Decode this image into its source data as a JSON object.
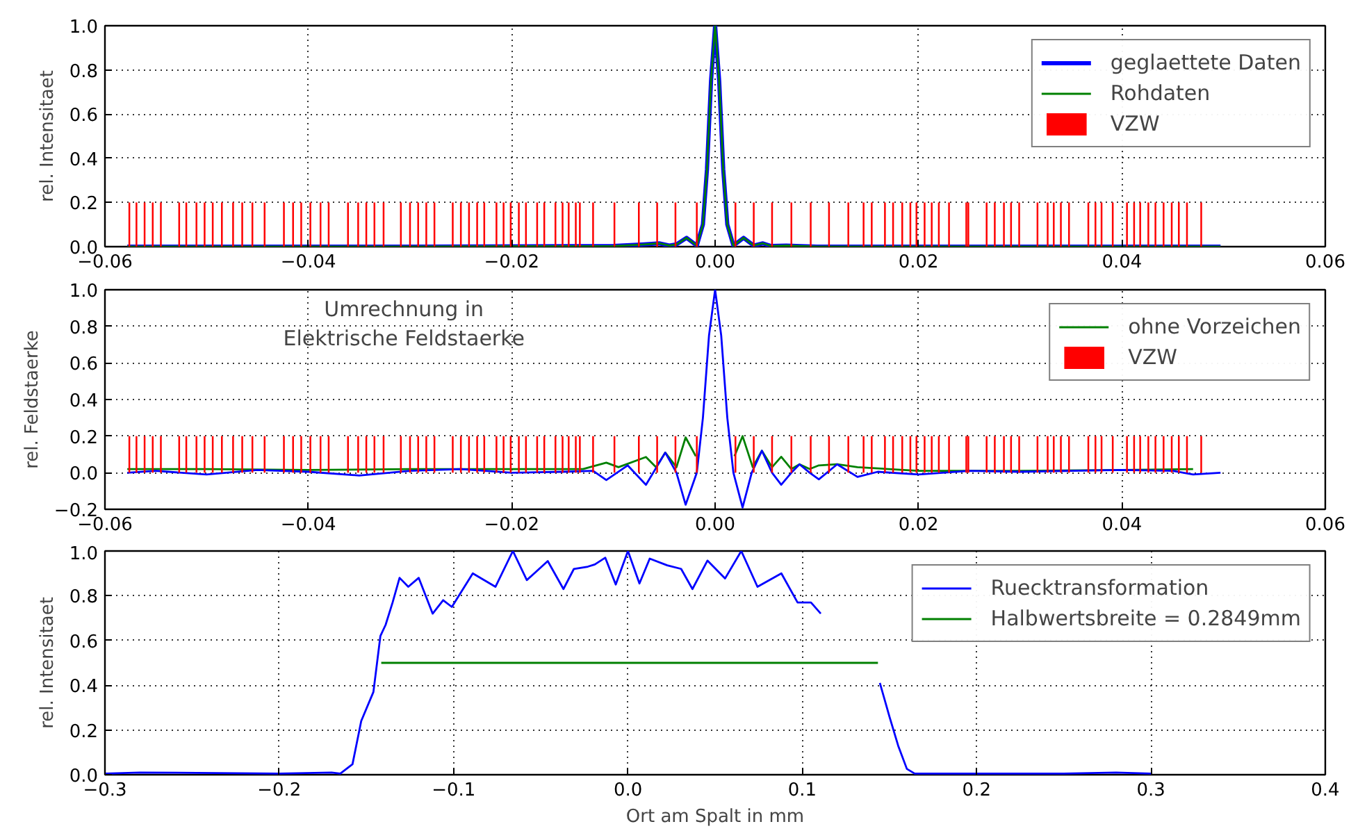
{
  "chart_data": [
    {
      "type": "line",
      "ylabel": "rel. Intensitaet",
      "xlim": [
        -0.06,
        0.06
      ],
      "ylim": [
        0,
        1.0
      ],
      "xticks": [
        {
          "value": -0.06,
          "label": "−0.06"
        },
        {
          "value": -0.04,
          "label": "−0.04"
        },
        {
          "value": -0.02,
          "label": "−0.02"
        },
        {
          "value": 0,
          "label": "0.00"
        },
        {
          "value": 0.02,
          "label": "0.02"
        },
        {
          "value": 0.04,
          "label": "0.04"
        },
        {
          "value": 0.06,
          "label": "0.06"
        }
      ],
      "yticks": [
        {
          "value": 0,
          "label": "0.0"
        },
        {
          "value": 0.2,
          "label": "0.2"
        },
        {
          "value": 0.4,
          "label": "0.4"
        },
        {
          "value": 0.6,
          "label": "0.6"
        },
        {
          "value": 0.8,
          "label": "0.8"
        },
        {
          "value": 1.0,
          "label": "1.0"
        }
      ],
      "grid": true,
      "legend": "top right",
      "series": [
        {
          "name": "geglaettete Daten",
          "color": "#0000ff",
          "x": [
            -0.0578,
            -0.03,
            -0.01,
            -0.007,
            -0.0055,
            -0.0045,
            -0.0038,
            -0.0028,
            -0.0018,
            -0.0012,
            -0.0008,
            -0.0004,
            0,
            0.0004,
            0.0008,
            0.0012,
            0.0018,
            0.0028,
            0.0038,
            0.0047,
            0.0055,
            0.007,
            0.01,
            0.03,
            0.0497
          ],
          "values": [
            0,
            0,
            0.003,
            0.01,
            0.015,
            0.005,
            0.01,
            0.04,
            0.005,
            0.1,
            0.35,
            0.75,
            1.0,
            0.75,
            0.35,
            0.1,
            0.005,
            0.04,
            0.005,
            0.015,
            0.003,
            0.005,
            0,
            0,
            0
          ]
        },
        {
          "name": "Rohdaten",
          "color": "#008000",
          "x": [
            -0.0578,
            -0.03,
            -0.01,
            -0.007,
            -0.0055,
            -0.0045,
            -0.0038,
            -0.0028,
            -0.0018,
            -0.0012,
            -0.0008,
            -0.0004,
            0,
            0.0004,
            0.0008,
            0.0012,
            0.0018,
            0.0028,
            0.0038,
            0.0047,
            0.0055,
            0.007,
            0.01,
            0.03,
            0.0497
          ],
          "values": [
            0,
            0,
            0.003,
            0.01,
            0.015,
            0.005,
            0.01,
            0.04,
            0.005,
            0.1,
            0.35,
            0.75,
            1.0,
            0.75,
            0.35,
            0.1,
            0.005,
            0.04,
            0.005,
            0.015,
            0.003,
            0.005,
            0,
            0,
            0
          ]
        },
        {
          "name": "VZW",
          "type": "bar",
          "color": "#ff0000",
          "x": [
            -0.0576,
            -0.0569,
            -0.0561,
            -0.0553,
            -0.0545,
            -0.0527,
            -0.052,
            -0.051,
            -0.0502,
            -0.0494,
            -0.0485,
            -0.0474,
            -0.0465,
            -0.0455,
            -0.0443,
            -0.0424,
            -0.0415,
            -0.0407,
            -0.0398,
            -0.0388,
            -0.038,
            -0.0361,
            -0.0351,
            -0.0343,
            -0.0335,
            -0.0326,
            -0.0309,
            -0.03,
            -0.0292,
            -0.0284,
            -0.0276,
            -0.0258,
            -0.025,
            -0.0242,
            -0.0234,
            -0.0227,
            -0.0215,
            -0.0208,
            -0.0201,
            -0.0193,
            -0.0186,
            -0.0175,
            -0.0168,
            -0.0157,
            -0.015,
            -0.0144,
            -0.0137,
            -0.0133,
            -0.012,
            -0.0099,
            -0.0075,
            -0.0057,
            -0.0039,
            -0.0018,
            0.002,
            0.0038,
            0.0056,
            0.0075,
            0.0094,
            0.0112,
            0.0131,
            0.0146,
            0.0154,
            0.0167,
            0.0175,
            0.0184,
            0.0192,
            0.0198,
            0.0206,
            0.0213,
            0.022,
            0.023,
            0.0247,
            0.0249,
            0.0267,
            0.0275,
            0.0284,
            0.0291,
            0.0299,
            0.0317,
            0.0327,
            0.0333,
            0.034,
            0.0348,
            0.0367,
            0.0374,
            0.038,
            0.0391,
            0.0405,
            0.0412,
            0.0418,
            0.0426,
            0.0433,
            0.0441,
            0.0449,
            0.0456,
            0.0464,
            0.0478
          ],
          "values": [
            0.2,
            0.2,
            0.2,
            0.2,
            0.2,
            0.2,
            0.2,
            0.2,
            0.2,
            0.2,
            0.2,
            0.2,
            0.2,
            0.2,
            0.2,
            0.2,
            0.2,
            0.2,
            0.2,
            0.2,
            0.2,
            0.2,
            0.2,
            0.2,
            0.2,
            0.2,
            0.2,
            0.2,
            0.2,
            0.2,
            0.2,
            0.2,
            0.2,
            0.2,
            0.2,
            0.2,
            0.2,
            0.2,
            0.2,
            0.2,
            0.2,
            0.2,
            0.2,
            0.2,
            0.2,
            0.2,
            0.2,
            0.2,
            0.2,
            0.2,
            0.2,
            0.2,
            0.2,
            0.2,
            0.2,
            0.2,
            0.2,
            0.2,
            0.2,
            0.2,
            0.2,
            0.2,
            0.2,
            0.2,
            0.2,
            0.2,
            0.2,
            0.2,
            0.2,
            0.2,
            0.2,
            0.2,
            0.2,
            0.2,
            0.2,
            0.2,
            0.2,
            0.2,
            0.2,
            0.2,
            0.2,
            0.2,
            0.2,
            0.2,
            0.2,
            0.2,
            0.2,
            0.2,
            0.2,
            0.2,
            0.2,
            0.2,
            0.2,
            0.2,
            0.2,
            0.2,
            0.2,
            0.2
          ]
        }
      ]
    },
    {
      "type": "line",
      "ylabel": "rel. Feldstaerke",
      "xlim": [
        -0.06,
        0.06
      ],
      "ylim": [
        -0.2,
        1.0
      ],
      "xticks": [
        {
          "value": -0.06,
          "label": "−0.06"
        },
        {
          "value": -0.04,
          "label": "−0.04"
        },
        {
          "value": -0.02,
          "label": "−0.02"
        },
        {
          "value": 0,
          "label": "0.00"
        },
        {
          "value": 0.02,
          "label": "0.02"
        },
        {
          "value": 0.04,
          "label": "0.04"
        },
        {
          "value": 0.06,
          "label": "0.06"
        }
      ],
      "yticks": [
        {
          "value": -0.2,
          "label": "−0.2"
        },
        {
          "value": 0,
          "label": "0.0"
        },
        {
          "value": 0.2,
          "label": "0.2"
        },
        {
          "value": 0.4,
          "label": "0.4"
        },
        {
          "value": 0.6,
          "label": "0.6"
        },
        {
          "value": 0.8,
          "label": "0.8"
        },
        {
          "value": 1.0,
          "label": "1.0"
        }
      ],
      "grid": true,
      "legend": "top right",
      "annotations": [
        "Umrechnung in\nElektrische Feldstaerke"
      ],
      "series": [
        {
          "name": "ohne Vorzeichen",
          "color": "#008000",
          "x": [
            -0.0578,
            -0.05,
            -0.04,
            -0.03,
            -0.02,
            -0.013,
            -0.0107,
            -0.0095,
            -0.0068,
            -0.0058,
            -0.0049,
            -0.0038,
            -0.0029,
            -0.0019,
            -0.0012,
            -0.0006,
            0,
            0.0006,
            0.0012,
            0.0019,
            0.0027,
            0.0037,
            0.0046,
            0.0056,
            0.0065,
            0.0075,
            0.0083,
            0.0093,
            0.0102,
            0.012,
            0.014,
            0.02,
            0.03,
            0.04,
            0.047
          ],
          "values": [
            0.02,
            0.02,
            0.015,
            0.02,
            0.02,
            0.02,
            0.055,
            0.03,
            0.086,
            0.03,
            0.11,
            0.03,
            0.193,
            0.09,
            null,
            null,
            null,
            null,
            null,
            0.09,
            0.2,
            0.03,
            0.12,
            0.03,
            0.087,
            0.02,
            0.046,
            0.02,
            0.04,
            0.046,
            0.03,
            0.01,
            0.01,
            0.015,
            0.02
          ]
        },
        {
          "color": "#0000ff",
          "x": [
            -0.0578,
            -0.055,
            -0.05,
            -0.045,
            -0.04,
            -0.035,
            -0.03,
            -0.025,
            -0.02,
            -0.015,
            -0.012,
            -0.0107,
            -0.0086,
            -0.0068,
            -0.0049,
            -0.0038,
            -0.0029,
            -0.0018,
            -0.0012,
            -0.0006,
            0,
            0.0006,
            0.0012,
            0.0018,
            0.0027,
            0.0036,
            0.0046,
            0.0056,
            0.0065,
            0.0075,
            0.0083,
            0.0093,
            0.0102,
            0.012,
            0.014,
            0.016,
            0.02,
            0.025,
            0.03,
            0.035,
            0.04,
            0.045,
            0.047,
            0.0497
          ],
          "values": [
            0,
            0.01,
            -0.01,
            0.015,
            0.005,
            -0.015,
            0.01,
            0.02,
            0,
            0.005,
            0.01,
            -0.04,
            0.04,
            -0.066,
            0.11,
            0,
            -0.175,
            0,
            0.3,
            0.75,
            1.0,
            0.75,
            0.3,
            0,
            -0.19,
            0,
            0.12,
            0,
            -0.066,
            0,
            0.046,
            0,
            -0.036,
            0.046,
            -0.023,
            0.005,
            -0.01,
            0.01,
            0.005,
            0.01,
            0.015,
            0.01,
            -0.01,
            0
          ]
        },
        {
          "name": "VZW",
          "type": "bar",
          "color": "#ff0000",
          "x": [
            -0.0576,
            -0.0569,
            -0.0561,
            -0.0553,
            -0.0545,
            -0.0527,
            -0.052,
            -0.051,
            -0.0502,
            -0.0494,
            -0.0485,
            -0.0474,
            -0.0465,
            -0.0455,
            -0.0443,
            -0.0424,
            -0.0415,
            -0.0407,
            -0.0398,
            -0.0388,
            -0.038,
            -0.0361,
            -0.0351,
            -0.0343,
            -0.0335,
            -0.0326,
            -0.0309,
            -0.03,
            -0.0292,
            -0.0284,
            -0.0276,
            -0.0258,
            -0.025,
            -0.0242,
            -0.0234,
            -0.0227,
            -0.0215,
            -0.0208,
            -0.0201,
            -0.0193,
            -0.0186,
            -0.0175,
            -0.0168,
            -0.0157,
            -0.015,
            -0.0144,
            -0.0137,
            -0.0133,
            -0.012,
            -0.0099,
            -0.0075,
            -0.0057,
            -0.0039,
            -0.0018,
            0.002,
            0.0038,
            0.0056,
            0.0075,
            0.0094,
            0.0112,
            0.0131,
            0.0146,
            0.0154,
            0.0167,
            0.0175,
            0.0184,
            0.0192,
            0.0198,
            0.0206,
            0.0213,
            0.022,
            0.023,
            0.0247,
            0.0249,
            0.0267,
            0.0275,
            0.0284,
            0.0291,
            0.0299,
            0.0317,
            0.0327,
            0.0333,
            0.034,
            0.0348,
            0.0367,
            0.0374,
            0.038,
            0.0391,
            0.0405,
            0.0412,
            0.0418,
            0.0426,
            0.0433,
            0.0441,
            0.0449,
            0.0456,
            0.0464,
            0.0478
          ],
          "values": [
            0.2,
            0.2,
            0.2,
            0.2,
            0.2,
            0.2,
            0.2,
            0.2,
            0.2,
            0.2,
            0.2,
            0.2,
            0.2,
            0.2,
            0.2,
            0.2,
            0.2,
            0.2,
            0.2,
            0.2,
            0.2,
            0.2,
            0.2,
            0.2,
            0.2,
            0.2,
            0.2,
            0.2,
            0.2,
            0.2,
            0.2,
            0.2,
            0.2,
            0.2,
            0.2,
            0.2,
            0.2,
            0.2,
            0.2,
            0.2,
            0.2,
            0.2,
            0.2,
            0.2,
            0.2,
            0.2,
            0.2,
            0.2,
            0.2,
            0.2,
            0.2,
            0.2,
            0.2,
            0.2,
            0.2,
            0.2,
            0.2,
            0.2,
            0.2,
            0.2,
            0.2,
            0.2,
            0.2,
            0.2,
            0.2,
            0.2,
            0.2,
            0.2,
            0.2,
            0.2,
            0.2,
            0.2,
            0.2,
            0.2,
            0.2,
            0.2,
            0.2,
            0.2,
            0.2,
            0.2,
            0.2,
            0.2,
            0.2,
            0.2,
            0.2,
            0.2,
            0.2,
            0.2,
            0.2,
            0.2,
            0.2,
            0.2,
            0.2,
            0.2,
            0.2,
            0.2,
            0.2,
            0.2
          ]
        }
      ]
    },
    {
      "type": "line",
      "xlabel": "Ort am Spalt in mm",
      "ylabel": "rel. Intensitaet",
      "xlim": [
        -0.3,
        0.4
      ],
      "ylim": [
        0,
        1.0
      ],
      "xticks": [
        {
          "value": -0.3,
          "label": "−0.3"
        },
        {
          "value": -0.2,
          "label": "−0.2"
        },
        {
          "value": -0.1,
          "label": "−0.1"
        },
        {
          "value": 0,
          "label": "0.0"
        },
        {
          "value": 0.1,
          "label": "0.1"
        },
        {
          "value": 0.2,
          "label": "0.2"
        },
        {
          "value": 0.3,
          "label": "0.3"
        },
        {
          "value": 0.4,
          "label": "0.4"
        }
      ],
      "yticks": [
        {
          "value": 0,
          "label": "0.0"
        },
        {
          "value": 0.2,
          "label": "0.2"
        },
        {
          "value": 0.4,
          "label": "0.4"
        },
        {
          "value": 0.6,
          "label": "0.6"
        },
        {
          "value": 0.8,
          "label": "0.8"
        },
        {
          "value": 1.0,
          "label": "1.0"
        }
      ],
      "grid": true,
      "legend": "top right",
      "series": [
        {
          "name": "Ruecktransformation",
          "color": "#0000ff",
          "x": [
            -0.3,
            -0.28,
            -0.2,
            -0.17,
            -0.165,
            -0.158,
            -0.153,
            -0.146,
            -0.142,
            -0.139,
            -0.135,
            -0.131,
            -0.126,
            -0.12,
            -0.112,
            -0.106,
            -0.101,
            -0.089,
            -0.076,
            -0.066,
            -0.058,
            -0.046,
            -0.037,
            -0.031,
            -0.023,
            -0.019,
            -0.013,
            -0.007,
            0,
            0.0066,
            0.0125,
            0.0225,
            0.0305,
            0.037,
            0.0456,
            0.0557,
            0.065,
            0.0743,
            0.088,
            0.0973,
            0.105,
            0.1106,
            0.117,
            0.141,
            0.1445,
            0.15,
            0.155,
            0.16,
            0.1645,
            0.2,
            0.25,
            0.28,
            0.3
          ],
          "values": [
            0.005,
            0.01,
            0.005,
            0.01,
            0.005,
            0.047,
            0.24,
            0.37,
            0.62,
            0.67,
            0.77,
            0.88,
            0.84,
            0.88,
            0.72,
            0.78,
            0.75,
            0.9,
            0.84,
            1.0,
            0.87,
            0.955,
            0.83,
            0.92,
            0.93,
            0.94,
            0.97,
            0.85,
            1.0,
            0.855,
            0.966,
            0.936,
            0.92,
            0.83,
            0.957,
            0.877,
            1.0,
            0.84,
            0.9,
            0.77,
            0.77,
            0.72,
            null,
            null,
            0.41,
            0.26,
            0.13,
            0.026,
            0.005,
            0.005,
            0.005,
            0.01,
            0.005
          ]
        },
        {
          "name": "Halbwertsbreite = 0.2849mm",
          "color": "#008000",
          "x": [
            -0.1415,
            0.1434
          ],
          "values": [
            0.5,
            0.5
          ]
        }
      ]
    }
  ]
}
